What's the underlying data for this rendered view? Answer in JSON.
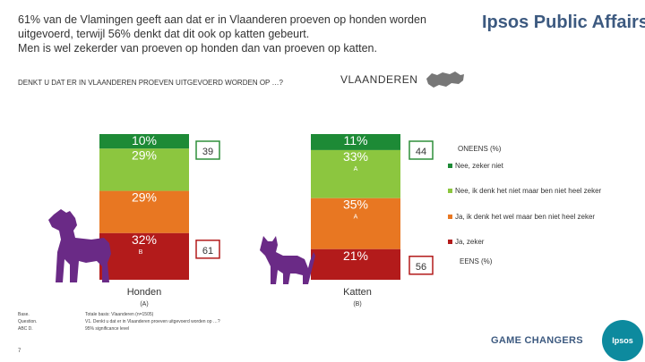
{
  "headline": [
    "61% van de Vlamingen geeft aan dat er in Vlaanderen proeven op honden worden",
    "uitgevoerd, terwijl 56% denkt dat dit ook op katten gebeurt.",
    "Men is wel zekerder van proeven op honden dan van proeven op katten."
  ],
  "brand": "Ipsos Public Affairs",
  "question_label": "DENKT U DAT ER IN VLAANDEREN PROEVEN UITGEVOERD WORDEN OP …?",
  "region_label": "VLAANDEREN",
  "colors": {
    "nee_zeker_niet": "#1d8a36",
    "nee_denk_niet": "#8cc63f",
    "ja_denk_wel": "#e87722",
    "ja_zeker": "#b31b1b",
    "totals": "#2f8f3a",
    "cat_dog": "#6a2a86"
  },
  "legend": {
    "oneens_title": "ONEENS (%)",
    "eens_title": "EENS (%)",
    "items": [
      {
        "label": "Nee, zeker niet",
        "color": "#1d8a36"
      },
      {
        "label": "Nee, ik denk het niet maar ben niet heel zeker",
        "color": "#8cc63f"
      },
      {
        "label": "Ja, ik denk het wel maar ben niet heel zeker",
        "color": "#e87722"
      },
      {
        "label": "Ja, zeker",
        "color": "#b31b1b"
      }
    ]
  },
  "chart_data": {
    "type": "bar",
    "stacked": true,
    "title": "DENKT U DAT ER IN VLAANDEREN PROEVEN UITGEVOERD WORDEN OP …?",
    "categories": [
      "Honden",
      "Katten"
    ],
    "category_subs": [
      "(A)",
      "(B)"
    ],
    "series": [
      {
        "name": "Nee, zeker niet",
        "values": [
          10,
          11
        ],
        "labels": [
          "10%",
          "11%"
        ],
        "sig": [
          "",
          ""
        ]
      },
      {
        "name": "Nee, ik denk het niet maar ben niet heel zeker",
        "values": [
          29,
          33
        ],
        "labels": [
          "29%",
          "33%"
        ],
        "sig": [
          "",
          "A"
        ]
      },
      {
        "name": "Ja, ik denk het wel maar ben niet heel zeker",
        "values": [
          29,
          35
        ],
        "labels": [
          "29%",
          "35%"
        ],
        "sig": [
          "",
          "A"
        ]
      },
      {
        "name": "Ja, zeker",
        "values": [
          32,
          21
        ],
        "labels": [
          "32%",
          "21%"
        ],
        "sig": [
          "B",
          ""
        ]
      }
    ],
    "oneens_totals": [
      "39",
      "44"
    ],
    "eens_totals": [
      "61",
      "56"
    ]
  },
  "footer": {
    "left": [
      "Base.",
      "Question.",
      "ABC D."
    ],
    "right": [
      "Totale basis: Vlaanderen (n=1505)",
      "V1. Denkt u dat er in Vlaanderen proeven uitgevoerd worden op …?",
      "95% significance level"
    ],
    "page": "7"
  },
  "game_changers": "GAME CHANGERS",
  "ipsos_badge": "Ipsos"
}
